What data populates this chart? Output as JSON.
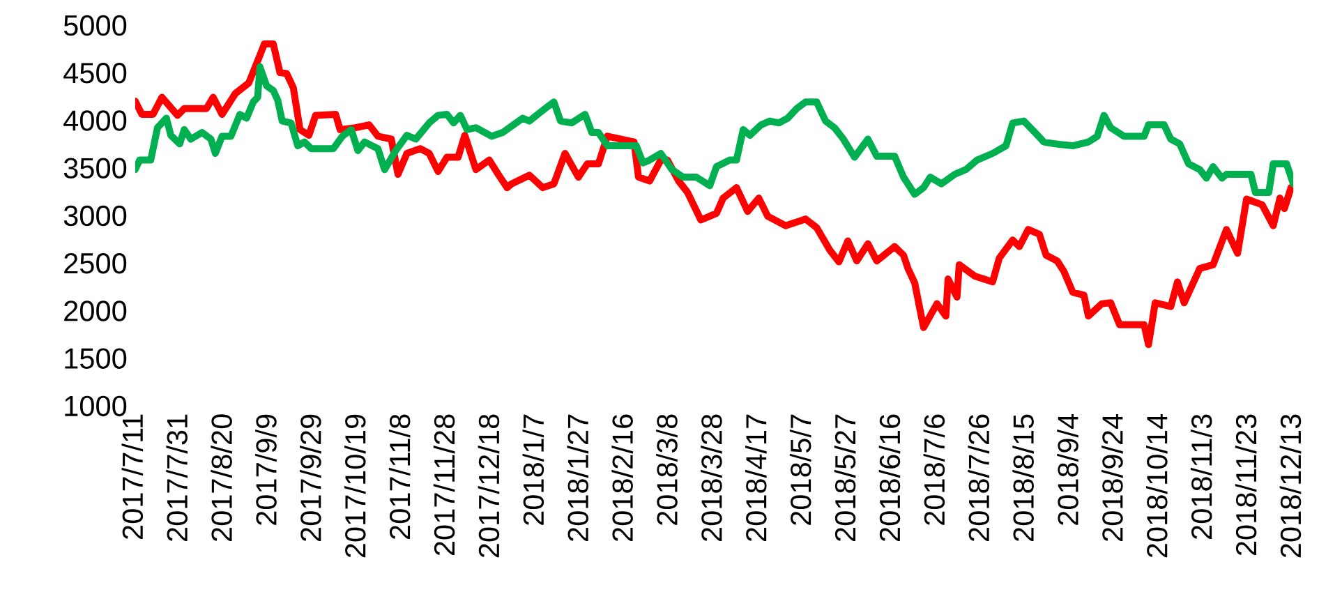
{
  "chart_data": {
    "type": "line",
    "grid": false,
    "line_style": "solid",
    "marker": "none",
    "xlim": [
      "2017-07-11",
      "2018-12-13"
    ],
    "ylim": [
      1000,
      5000
    ],
    "yticks": [
      1000,
      1500,
      2000,
      2500,
      3000,
      3500,
      4000,
      4500,
      5000
    ],
    "xticks": [
      {
        "value": "2017-07-11",
        "label": "2017/7/11"
      },
      {
        "value": "2017-07-31",
        "label": "2017/7/31"
      },
      {
        "value": "2017-08-20",
        "label": "2017/8/20"
      },
      {
        "value": "2017-09-09",
        "label": "2017/9/9"
      },
      {
        "value": "2017-09-29",
        "label": "2017/9/29"
      },
      {
        "value": "2017-10-19",
        "label": "2017/10/19"
      },
      {
        "value": "2017-11-08",
        "label": "2017/11/8"
      },
      {
        "value": "2017-11-28",
        "label": "2017/11/28"
      },
      {
        "value": "2017-12-18",
        "label": "2017/12/18"
      },
      {
        "value": "2018-01-07",
        "label": "2018/1/7"
      },
      {
        "value": "2018-01-27",
        "label": "2018/1/27"
      },
      {
        "value": "2018-02-16",
        "label": "2018/2/16"
      },
      {
        "value": "2018-03-08",
        "label": "2018/3/8"
      },
      {
        "value": "2018-03-28",
        "label": "2018/3/28"
      },
      {
        "value": "2018-04-17",
        "label": "2018/4/17"
      },
      {
        "value": "2018-05-07",
        "label": "2018/5/7"
      },
      {
        "value": "2018-05-27",
        "label": "2018/5/27"
      },
      {
        "value": "2018-06-16",
        "label": "2018/6/16"
      },
      {
        "value": "2018-07-06",
        "label": "2018/7/6"
      },
      {
        "value": "2018-07-26",
        "label": "2018/7/26"
      },
      {
        "value": "2018-08-15",
        "label": "2018/8/15"
      },
      {
        "value": "2018-09-04",
        "label": "2018/9/4"
      },
      {
        "value": "2018-09-24",
        "label": "2018/9/24"
      },
      {
        "value": "2018-10-14",
        "label": "2018/10/14"
      },
      {
        "value": "2018-11-03",
        "label": "2018/11/3"
      },
      {
        "value": "2018-11-23",
        "label": "2018/11/23"
      },
      {
        "value": "2018-12-13",
        "label": "2018/12/13"
      }
    ],
    "series": [
      {
        "color": "#ff0000",
        "x": [
          "2017-07-11",
          "2017-07-14",
          "2017-07-19",
          "2017-07-23",
          "2017-07-30",
          "2017-08-02",
          "2017-08-12",
          "2017-08-15",
          "2017-08-19",
          "2017-08-25",
          "2017-08-31",
          "2017-09-05",
          "2017-09-07",
          "2017-09-11",
          "2017-09-14",
          "2017-09-17",
          "2017-09-20",
          "2017-09-23",
          "2017-09-27",
          "2017-09-30",
          "2017-10-09",
          "2017-10-11",
          "2017-10-18",
          "2017-10-24",
          "2017-10-28",
          "2017-11-03",
          "2017-11-06",
          "2017-11-10",
          "2017-11-16",
          "2017-11-20",
          "2017-11-24",
          "2017-11-28",
          "2017-12-03",
          "2017-12-06",
          "2017-12-11",
          "2017-12-17",
          "2017-12-21",
          "2017-12-25",
          "2017-12-27",
          "2018-01-04",
          "2018-01-10",
          "2018-01-15",
          "2018-01-20",
          "2018-01-26",
          "2018-01-30",
          "2018-02-04",
          "2018-02-08",
          "2018-02-20",
          "2018-02-22",
          "2018-02-27",
          "2018-03-04",
          "2018-03-07",
          "2018-03-12",
          "2018-03-16",
          "2018-03-22",
          "2018-03-29",
          "2018-04-01",
          "2018-04-07",
          "2018-04-12",
          "2018-04-17",
          "2018-04-21",
          "2018-04-29",
          "2018-05-08",
          "2018-05-13",
          "2018-05-19",
          "2018-05-23",
          "2018-05-27",
          "2018-05-31",
          "2018-06-05",
          "2018-06-09",
          "2018-06-17",
          "2018-06-21",
          "2018-06-23",
          "2018-06-26",
          "2018-06-30",
          "2018-07-06",
          "2018-07-10",
          "2018-07-11",
          "2018-07-15",
          "2018-07-16",
          "2018-07-23",
          "2018-07-31",
          "2018-08-03",
          "2018-08-09",
          "2018-08-12",
          "2018-08-16",
          "2018-08-21",
          "2018-08-24",
          "2018-08-29",
          "2018-09-01",
          "2018-09-05",
          "2018-09-10",
          "2018-09-12",
          "2018-09-18",
          "2018-09-22",
          "2018-09-26",
          "2018-10-07",
          "2018-10-09",
          "2018-10-12",
          "2018-10-19",
          "2018-10-22",
          "2018-10-25",
          "2018-11-01",
          "2018-11-07",
          "2018-11-13",
          "2018-11-18",
          "2018-11-22",
          "2018-11-29",
          "2018-12-04",
          "2018-12-07",
          "2018-12-09",
          "2018-12-12",
          "2018-12-13"
        ],
        "values": [
          4200,
          4060,
          4060,
          4240,
          4050,
          4120,
          4120,
          4240,
          4060,
          4280,
          4390,
          4680,
          4800,
          4800,
          4500,
          4490,
          4340,
          3900,
          3840,
          4050,
          4060,
          3900,
          3920,
          3950,
          3830,
          3800,
          3430,
          3650,
          3700,
          3650,
          3460,
          3610,
          3610,
          3840,
          3480,
          3580,
          3430,
          3290,
          3330,
          3420,
          3290,
          3330,
          3650,
          3400,
          3540,
          3540,
          3830,
          3770,
          3400,
          3360,
          3580,
          3580,
          3360,
          3240,
          2950,
          3020,
          3180,
          3290,
          3040,
          3180,
          2990,
          2890,
          2960,
          2870,
          2630,
          2510,
          2730,
          2520,
          2700,
          2520,
          2670,
          2580,
          2440,
          2290,
          1820,
          2070,
          1940,
          2330,
          2140,
          2480,
          2360,
          2300,
          2550,
          2740,
          2670,
          2850,
          2800,
          2580,
          2520,
          2410,
          2190,
          2160,
          1940,
          2070,
          2080,
          1850,
          1850,
          1640,
          2080,
          2040,
          2300,
          2080,
          2440,
          2480,
          2850,
          2600,
          3170,
          3110,
          2890,
          3180,
          3070,
          3290,
          3290
        ]
      },
      {
        "color": "#00b050",
        "x": [
          "2017-07-11",
          "2017-07-13",
          "2017-07-18",
          "2017-07-21",
          "2017-07-25",
          "2017-07-27",
          "2017-07-31",
          "2017-08-02",
          "2017-08-05",
          "2017-08-10",
          "2017-08-14",
          "2017-08-16",
          "2017-08-19",
          "2017-08-23",
          "2017-08-27",
          "2017-08-30",
          "2017-09-02",
          "2017-09-04",
          "2017-09-05",
          "2017-09-08",
          "2017-09-11",
          "2017-09-13",
          "2017-09-15",
          "2017-09-19",
          "2017-09-22",
          "2017-09-25",
          "2017-09-28",
          "2017-10-08",
          "2017-10-12",
          "2017-10-16",
          "2017-10-19",
          "2017-10-22",
          "2017-10-28",
          "2017-10-31",
          "2017-11-05",
          "2017-11-10",
          "2017-11-14",
          "2017-11-20",
          "2017-11-24",
          "2017-11-28",
          "2017-12-01",
          "2017-12-04",
          "2017-12-07",
          "2017-12-11",
          "2017-12-18",
          "2017-12-23",
          "2017-12-29",
          "2018-01-01",
          "2018-01-04",
          "2018-01-11",
          "2018-01-15",
          "2018-01-18",
          "2018-01-23",
          "2018-01-29",
          "2018-02-01",
          "2018-02-04",
          "2018-02-08",
          "2018-02-21",
          "2018-02-24",
          "2018-02-27",
          "2018-03-04",
          "2018-03-09",
          "2018-03-14",
          "2018-03-20",
          "2018-03-26",
          "2018-03-29",
          "2018-04-04",
          "2018-04-07",
          "2018-04-10",
          "2018-04-13",
          "2018-04-18",
          "2018-04-22",
          "2018-04-26",
          "2018-04-30",
          "2018-05-04",
          "2018-05-08",
          "2018-05-13",
          "2018-05-17",
          "2018-05-21",
          "2018-05-25",
          "2018-05-30",
          "2018-06-05",
          "2018-06-09",
          "2018-06-17",
          "2018-06-21",
          "2018-06-26",
          "2018-06-30",
          "2018-07-03",
          "2018-07-08",
          "2018-07-14",
          "2018-07-19",
          "2018-07-24",
          "2018-07-31",
          "2018-08-06",
          "2018-08-09",
          "2018-08-14",
          "2018-08-19",
          "2018-08-23",
          "2018-08-28",
          "2018-09-05",
          "2018-09-12",
          "2018-09-16",
          "2018-09-19",
          "2018-09-22",
          "2018-09-28",
          "2018-10-07",
          "2018-10-09",
          "2018-10-16",
          "2018-10-19",
          "2018-10-23",
          "2018-10-27",
          "2018-11-01",
          "2018-11-04",
          "2018-11-07",
          "2018-11-11",
          "2018-11-13",
          "2018-11-24",
          "2018-11-26",
          "2018-12-02",
          "2018-12-04",
          "2018-12-10",
          "2018-12-13"
        ],
        "values": [
          3480,
          3580,
          3580,
          3920,
          4020,
          3840,
          3750,
          3900,
          3800,
          3870,
          3800,
          3650,
          3830,
          3830,
          4060,
          4020,
          4190,
          4240,
          4560,
          4360,
          4310,
          4210,
          3990,
          3970,
          3730,
          3770,
          3700,
          3700,
          3830,
          3900,
          3680,
          3770,
          3700,
          3480,
          3680,
          3840,
          3800,
          3970,
          4050,
          4060,
          3970,
          4050,
          3900,
          3920,
          3830,
          3870,
          3970,
          4020,
          3990,
          4120,
          4190,
          3990,
          3970,
          4060,
          3870,
          3870,
          3730,
          3730,
          3550,
          3580,
          3650,
          3480,
          3400,
          3400,
          3310,
          3510,
          3580,
          3580,
          3900,
          3840,
          3950,
          3990,
          3970,
          4020,
          4120,
          4190,
          4190,
          3990,
          3920,
          3800,
          3610,
          3800,
          3620,
          3620,
          3400,
          3220,
          3290,
          3400,
          3330,
          3430,
          3480,
          3580,
          3650,
          3730,
          3970,
          3990,
          3870,
          3770,
          3750,
          3730,
          3770,
          3830,
          4050,
          3920,
          3830,
          3830,
          3950,
          3950,
          3800,
          3750,
          3540,
          3480,
          3390,
          3510,
          3390,
          3430,
          3430,
          3240,
          3240,
          3540,
          3540,
          3330
        ]
      }
    ]
  }
}
